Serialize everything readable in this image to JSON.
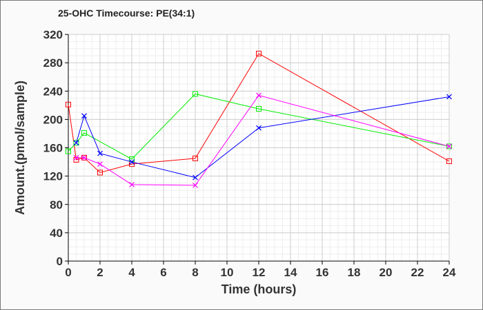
{
  "chart_data": {
    "type": "line",
    "title": "25-OHC Timecourse: PE(34:1)",
    "xlabel": "Time (hours)",
    "ylabel": "Amount.(pmol/sample)",
    "xlim": [
      0,
      24
    ],
    "ylim": [
      0,
      320
    ],
    "xticks": [
      0,
      2,
      4,
      6,
      8,
      10,
      12,
      14,
      16,
      18,
      20,
      22,
      24
    ],
    "yticks": [
      0,
      40,
      80,
      120,
      160,
      200,
      240,
      280,
      320
    ],
    "grid": true,
    "series": [
      {
        "name": "red",
        "color": "#ff0000",
        "marker": "square",
        "x": [
          0,
          0.5,
          1,
          2,
          4,
          8,
          12,
          24
        ],
        "y": [
          221,
          143,
          146,
          125,
          137,
          145,
          293,
          141
        ]
      },
      {
        "name": "green",
        "color": "#00ee00",
        "marker": "square",
        "x": [
          0,
          0.5,
          1,
          4,
          8,
          12,
          24
        ],
        "y": [
          155,
          167,
          181,
          144,
          236,
          215,
          162
        ]
      },
      {
        "name": "blue",
        "color": "#0000ff",
        "marker": "x",
        "x": [
          0.5,
          1,
          2,
          4,
          8,
          12,
          24
        ],
        "y": [
          167,
          205,
          152,
          140,
          118,
          188,
          232
        ]
      },
      {
        "name": "magenta",
        "color": "#ff00ff",
        "marker": "x",
        "x": [
          0.5,
          1,
          2,
          4,
          8,
          12,
          24
        ],
        "y": [
          146,
          146,
          137,
          108,
          107,
          234,
          162
        ]
      }
    ]
  }
}
